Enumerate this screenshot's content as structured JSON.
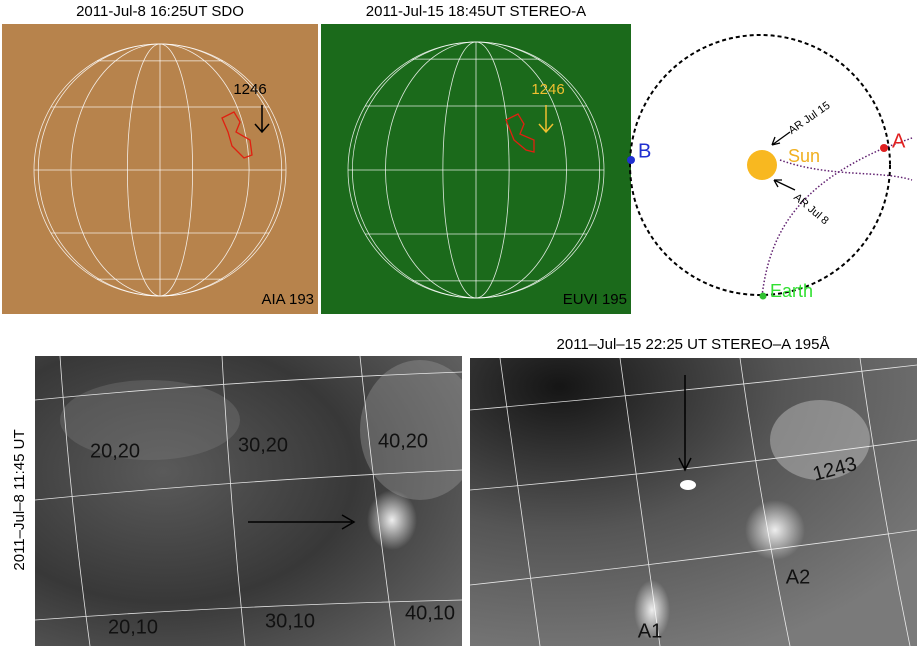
{
  "panels": [
    {
      "title": "2011-Jul-8 16:25UT SDO",
      "region": "1246",
      "instrument": "AIA 193"
    },
    {
      "title": "2011-Jul-15 18:45UT STEREO-A",
      "region": "1246",
      "instrument": "EUVI 195"
    },
    {
      "labels": {
        "b": "B",
        "a": "A",
        "sun": "Sun",
        "earth": "Earth",
        "ar_jul15": "AR Jul 15",
        "ar_jul8": "AR Jul 8"
      }
    },
    {
      "side_label": "2011–Jul–8 11:45 UT",
      "grid_labels": [
        "20,20",
        "30,20",
        "40,20",
        "20,10",
        "30,10",
        "40,10"
      ]
    },
    {
      "title": "2011–Jul–15 22:25 UT STEREO–A 195Å",
      "labels": [
        "1243",
        "A2",
        "A1"
      ]
    }
  ]
}
